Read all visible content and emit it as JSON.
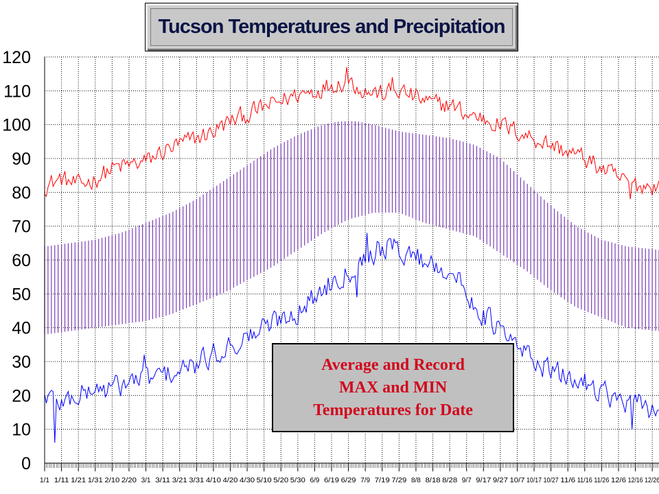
{
  "chart_data": {
    "type": "line",
    "title": "Tucson Temperatures and Precipitation",
    "annotation": "Average and Record\nMAX and MIN\nTemperatures for Date",
    "xlabel": "",
    "ylabel": "",
    "ylim": [
      0,
      120
    ],
    "y_ticks": [
      0,
      10,
      20,
      30,
      40,
      50,
      60,
      70,
      80,
      90,
      100,
      110,
      120
    ],
    "x_tick_labels": [
      "1/1",
      "1/11",
      "1/21",
      "1/31",
      "2/10",
      "2/20",
      "3/1",
      "3/11",
      "3/21",
      "3/31",
      "4/10",
      "4/20",
      "4/30",
      "5/10",
      "5/20",
      "5/30",
      "6/9",
      "6/19",
      "6/29",
      "7/9",
      "7/19",
      "7/29",
      "8/8",
      "8/18",
      "8/28",
      "9/7",
      "9/17",
      "9/27",
      "10/7",
      "10/17",
      "10/27",
      "11/6",
      "11/16",
      "11/26",
      "12/6",
      "12/16",
      "12/26"
    ],
    "grid": true,
    "legend": "none",
    "days": 365,
    "series": [
      {
        "role": "record-high",
        "color": "#ff0000",
        "day": [
          1,
          11,
          21,
          31,
          41,
          51,
          61,
          71,
          81,
          91,
          101,
          111,
          121,
          131,
          141,
          151,
          161,
          171,
          181,
          191,
          201,
          211,
          221,
          231,
          241,
          251,
          261,
          271,
          281,
          291,
          301,
          311,
          321,
          331,
          341,
          351,
          361,
          365
        ],
        "values": [
          82,
          84,
          82,
          84,
          87,
          88,
          89,
          92,
          94,
          96,
          98,
          101,
          103,
          105,
          107,
          109,
          110,
          112,
          113,
          110,
          109,
          110,
          108,
          106,
          106,
          103,
          102,
          100,
          98,
          96,
          94,
          92,
          90,
          87,
          84,
          82,
          82,
          82
        ]
      },
      {
        "role": "average-high",
        "color": "#7b3fb5",
        "day": [
          1,
          16,
          31,
          46,
          61,
          76,
          91,
          106,
          121,
          136,
          151,
          166,
          176,
          186,
          196,
          211,
          226,
          241,
          256,
          271,
          286,
          301,
          316,
          331,
          346,
          365
        ],
        "values": [
          64,
          65,
          66,
          68,
          71,
          74,
          78,
          83,
          88,
          93,
          97,
          100,
          101,
          101,
          100,
          98,
          97,
          96,
          94,
          90,
          83,
          76,
          70,
          66,
          64,
          63
        ]
      },
      {
        "role": "average-low",
        "color": "#7b3fb5",
        "day": [
          1,
          16,
          31,
          46,
          61,
          76,
          91,
          106,
          121,
          136,
          151,
          166,
          181,
          196,
          211,
          226,
          241,
          256,
          271,
          286,
          301,
          316,
          331,
          346,
          365
        ],
        "values": [
          38,
          39,
          40,
          41,
          42,
          44,
          47,
          50,
          54,
          58,
          63,
          68,
          72,
          74,
          74,
          71,
          69,
          67,
          62,
          57,
          51,
          46,
          43,
          40,
          39
        ]
      },
      {
        "role": "record-low",
        "color": "#0000ff",
        "day": [
          1,
          11,
          21,
          31,
          41,
          51,
          61,
          71,
          81,
          91,
          101,
          111,
          121,
          131,
          141,
          151,
          161,
          171,
          181,
          191,
          201,
          211,
          221,
          231,
          241,
          251,
          261,
          271,
          281,
          291,
          301,
          311,
          321,
          331,
          341,
          351,
          361,
          365
        ],
        "values": [
          20,
          18,
          20,
          22,
          22,
          24,
          25,
          26,
          27,
          29,
          32,
          35,
          37,
          40,
          43,
          45,
          49,
          54,
          57,
          61,
          64,
          63,
          61,
          59,
          57,
          50,
          44,
          39,
          34,
          31,
          27,
          25,
          24,
          22,
          18,
          17,
          16,
          16
        ]
      }
    ],
    "special_points": [
      {
        "series": "record-low",
        "day": 7,
        "value": 6
      },
      {
        "series": "record-low",
        "day": 60,
        "value": 32
      },
      {
        "series": "record-high",
        "day": 180,
        "value": 117
      },
      {
        "series": "record-high",
        "day": 207,
        "value": 114
      },
      {
        "series": "record-low",
        "day": 192,
        "value": 68
      },
      {
        "series": "record-low",
        "day": 186,
        "value": 49
      },
      {
        "series": "record-low",
        "day": 349,
        "value": 10
      },
      {
        "series": "record-high",
        "day": 348,
        "value": 78
      }
    ]
  }
}
